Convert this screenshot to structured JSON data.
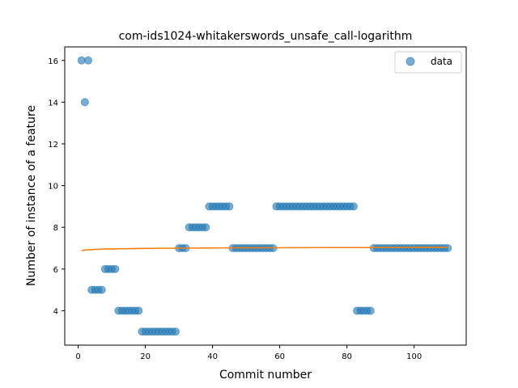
{
  "chart_data": {
    "type": "scatter",
    "title": "com-ids1024-whitakerswords_unsafe_call-logarithm",
    "xlabel": "Commit number",
    "ylabel": "Number of instance of a feature",
    "xlim": [
      -4,
      115.5
    ],
    "ylim": [
      2.35,
      16.65
    ],
    "xticks": [
      0,
      20,
      40,
      60,
      80,
      100
    ],
    "yticks": [
      4,
      6,
      8,
      10,
      12,
      14,
      16
    ],
    "grid": false,
    "legend": "top-right",
    "colors": {
      "data": "#1f77b4",
      "fit": "#ff7f0e"
    },
    "series": [
      {
        "name": "data",
        "kind": "scatter",
        "x": [
          1,
          2,
          3,
          4,
          5,
          6,
          7,
          8,
          9,
          10,
          11,
          12,
          13,
          14,
          15,
          16,
          17,
          18,
          19,
          20,
          21,
          22,
          23,
          24,
          25,
          26,
          27,
          28,
          29,
          30,
          31,
          32,
          33,
          34,
          35,
          36,
          37,
          38,
          39,
          40,
          41,
          42,
          43,
          44,
          45,
          46,
          47,
          48,
          49,
          50,
          51,
          52,
          53,
          54,
          55,
          56,
          57,
          58,
          59,
          60,
          61,
          62,
          63,
          64,
          65,
          66,
          67,
          68,
          69,
          70,
          71,
          72,
          73,
          74,
          75,
          76,
          77,
          78,
          79,
          80,
          81,
          82,
          83,
          84,
          85,
          86,
          87,
          88,
          89,
          90,
          91,
          92,
          93,
          94,
          95,
          96,
          97,
          98,
          99,
          100,
          101,
          102,
          103,
          104,
          105,
          106,
          107,
          108,
          109,
          110
        ],
        "y": [
          16,
          14,
          16,
          5,
          5,
          5,
          5,
          6,
          6,
          6,
          6,
          4,
          4,
          4,
          4,
          4,
          4,
          4,
          3,
          3,
          3,
          3,
          3,
          3,
          3,
          3,
          3,
          3,
          3,
          7,
          7,
          7,
          8,
          8,
          8,
          8,
          8,
          8,
          9,
          9,
          9,
          9,
          9,
          9,
          9,
          7,
          7,
          7,
          7,
          7,
          7,
          7,
          7,
          7,
          7,
          7,
          7,
          7,
          9,
          9,
          9,
          9,
          9,
          9,
          9,
          9,
          9,
          9,
          9,
          9,
          9,
          9,
          9,
          9,
          9,
          9,
          9,
          9,
          9,
          9,
          9,
          9,
          4,
          4,
          4,
          4,
          4,
          7,
          7,
          7,
          7,
          7,
          7,
          7,
          7,
          7,
          7,
          7,
          7,
          7,
          7,
          7,
          7,
          7,
          7,
          7,
          7,
          7,
          7,
          7
        ]
      },
      {
        "kind": "line",
        "x": [
          1,
          2,
          3,
          5,
          8,
          12,
          20,
          30,
          40,
          50,
          60,
          70,
          80,
          90,
          100,
          110
        ],
        "y": [
          6.88,
          6.91,
          6.92,
          6.94,
          6.96,
          6.97,
          6.99,
          7.0,
          7.01,
          7.02,
          7.02,
          7.03,
          7.03,
          7.03,
          7.04,
          7.04
        ]
      }
    ]
  }
}
